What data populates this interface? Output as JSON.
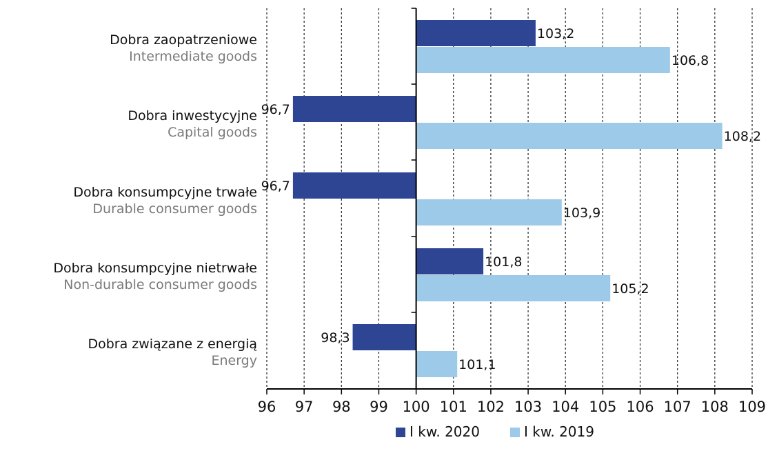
{
  "colors": {
    "series_2020": "#2e4594",
    "series_2019": "#9ecae9",
    "axis": "#000000"
  },
  "chart_data": {
    "type": "bar",
    "orientation": "horizontal",
    "categories": [
      {
        "pl": "Dobra zaopatrzeniowe",
        "en": "Intermediate goods"
      },
      {
        "pl": "Dobra inwestycyjne",
        "en": "Capital goods"
      },
      {
        "pl": "Dobra konsumpcyjne trwałe",
        "en": "Durable consumer goods"
      },
      {
        "pl": "Dobra konsumpcyjne nietrwałe",
        "en": "Non-durable consumer goods"
      },
      {
        "pl": "Dobra związane z energią",
        "en": "Energy"
      }
    ],
    "series": [
      {
        "name": "I kw. 2020",
        "values": [
          103.2,
          96.7,
          96.7,
          101.8,
          98.3
        ],
        "labels": [
          "103,2",
          "96,7",
          "96,7",
          "101,8",
          "98,3"
        ]
      },
      {
        "name": "I kw. 2019",
        "values": [
          106.8,
          108.2,
          103.9,
          105.2,
          101.1
        ],
        "labels": [
          "106,8",
          "108,2",
          "103,9",
          "105,2",
          "101,1"
        ]
      }
    ],
    "baseline": 100,
    "xlim": [
      96,
      109
    ],
    "xticks": [
      "96",
      "97",
      "98",
      "99",
      "100",
      "101",
      "102",
      "103",
      "104",
      "105",
      "106",
      "107",
      "108",
      "109"
    ],
    "grid": "vertical dashed",
    "legend_position": "bottom"
  }
}
